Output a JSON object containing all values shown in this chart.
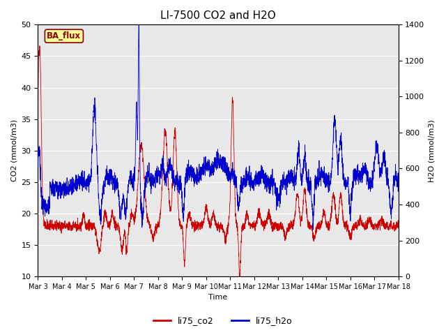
{
  "title": "LI-7500 CO2 and H2O",
  "xlabel": "Time",
  "ylabel_left": "CO2 (mmol/m3)",
  "ylabel_right": "H2O (mmol/m3)",
  "ylim_left": [
    10,
    50
  ],
  "ylim_right": [
    0,
    1400
  ],
  "yticks_left": [
    10,
    15,
    20,
    25,
    30,
    35,
    40,
    45,
    50
  ],
  "yticks_right": [
    0,
    200,
    400,
    600,
    800,
    1000,
    1200,
    1400
  ],
  "legend_labels": [
    "li75_co2",
    "li75_h2o"
  ],
  "legend_colors": [
    "#cc0000",
    "#0000cc"
  ],
  "annotation_text": "BA_flux",
  "annotation_color": "#8b0000",
  "annotation_bg": "#ffff99",
  "bg_color": "#e8e8e8",
  "grid_color": "#ffffff",
  "title_fontsize": 11,
  "axis_fontsize": 8,
  "tick_fontsize": 8,
  "co2_color": "#cc0000",
  "h2o_color": "#0000cc",
  "line_width": 0.6,
  "n_points": 3000
}
